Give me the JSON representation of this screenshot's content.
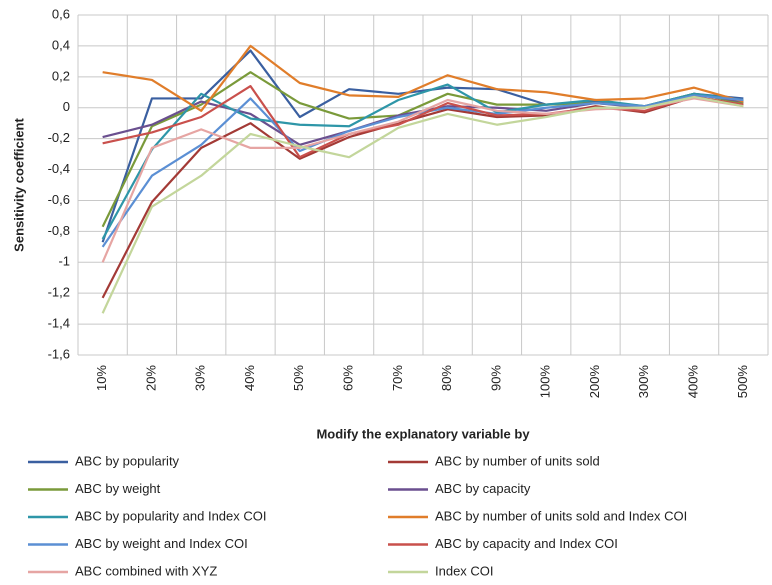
{
  "chart_data": {
    "type": "line",
    "y_label": "Sensitivity coefficient",
    "x_label": "Modify the explanatory variable by",
    "categories": [
      "10%",
      "20%",
      "30%",
      "40%",
      "50%",
      "60%",
      "70%",
      "80%",
      "90%",
      "100%",
      "200%",
      "300%",
      "400%",
      "500%"
    ],
    "ylim": [
      -1.6,
      0.6
    ],
    "yticks": [
      {
        "value": 0.6,
        "label": "0,6"
      },
      {
        "value": 0.4,
        "label": "0,4"
      },
      {
        "value": 0.2,
        "label": "0,2"
      },
      0,
      {
        "value": -0.2,
        "label": "-0,2"
      },
      {
        "value": -0.4,
        "label": "-0,4"
      },
      {
        "value": -0.6,
        "label": "-0,6"
      },
      {
        "value": -0.8,
        "label": "-0,8"
      },
      -1,
      {
        "value": -1.2,
        "label": "-1,2"
      },
      {
        "value": -1.4,
        "label": "-1,4"
      },
      {
        "value": -1.6,
        "label": "-1,6"
      }
    ],
    "grid": true,
    "series": [
      {
        "name": "ABC by popularity",
        "color": "#3a5fa0",
        "values": [
          -0.87,
          0.06,
          0.06,
          0.37,
          -0.06,
          0.12,
          0.09,
          0.13,
          0.12,
          0.02,
          0.04,
          0.01,
          0.09,
          0.06
        ]
      },
      {
        "name": "ABC by number of  units sold",
        "color": "#a33a36",
        "values": [
          -1.23,
          -0.61,
          -0.26,
          -0.1,
          -0.33,
          -0.19,
          -0.1,
          -0.01,
          -0.06,
          -0.05,
          0.01,
          -0.03,
          0.07,
          0.02
        ]
      },
      {
        "name": "ABC by weight",
        "color": "#7a9a3a",
        "values": [
          -0.77,
          -0.12,
          0.02,
          0.23,
          0.03,
          -0.07,
          -0.05,
          0.09,
          0.02,
          0.02,
          0.03,
          0.01,
          0.09,
          0.03
        ]
      },
      {
        "name": "ABC by capacity",
        "color": "#6a4f8f",
        "values": [
          -0.19,
          -0.11,
          0.04,
          -0.04,
          -0.24,
          -0.15,
          -0.05,
          0.01,
          0.0,
          -0.02,
          0.03,
          0.0,
          0.09,
          0.04
        ]
      },
      {
        "name": "ABC by popularity and Index COI",
        "color": "#2e96a8",
        "values": [
          -0.85,
          -0.27,
          0.09,
          -0.07,
          -0.11,
          -0.12,
          0.05,
          0.15,
          -0.03,
          0.02,
          0.05,
          0.01,
          0.09,
          0.05
        ]
      },
      {
        "name": "ABC by number of  units sold and Index COI",
        "color": "#e07d2a",
        "values": [
          0.23,
          0.18,
          -0.02,
          0.4,
          0.16,
          0.08,
          0.07,
          0.21,
          0.12,
          0.1,
          0.05,
          0.06,
          0.13,
          0.04
        ]
      },
      {
        "name": "ABC by weight and Index COI",
        "color": "#5b8fd4",
        "values": [
          -0.9,
          -0.44,
          -0.24,
          0.06,
          -0.28,
          -0.15,
          -0.06,
          0.0,
          -0.04,
          0.0,
          0.03,
          0.01,
          0.08,
          0.05
        ]
      },
      {
        "name": "ABC by capacity and Index COI",
        "color": "#c9504c",
        "values": [
          -0.23,
          -0.16,
          -0.06,
          0.14,
          -0.32,
          -0.17,
          -0.11,
          0.03,
          -0.05,
          -0.04,
          0.0,
          -0.02,
          0.07,
          0.02
        ]
      },
      {
        "name": "ABC combined with XYZ",
        "color": "#e6a5a3",
        "values": [
          -1.0,
          -0.26,
          -0.14,
          -0.26,
          -0.26,
          -0.17,
          -0.09,
          0.05,
          -0.02,
          -0.04,
          -0.01,
          0.0,
          0.06,
          0.01
        ]
      },
      {
        "name": "Index COI",
        "color": "#c3d69b",
        "values": [
          -1.33,
          -0.64,
          -0.44,
          -0.17,
          -0.25,
          -0.32,
          -0.13,
          -0.04,
          -0.11,
          -0.06,
          0.0,
          0.0,
          0.07,
          0.01
        ]
      }
    ]
  }
}
